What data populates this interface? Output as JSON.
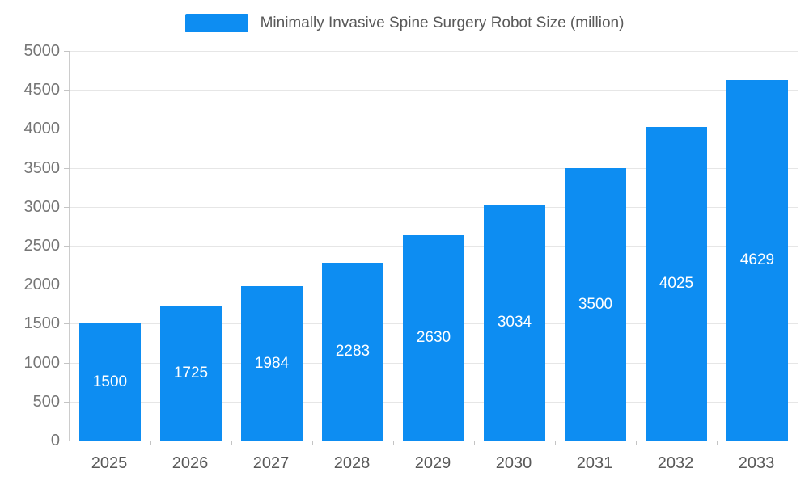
{
  "chart_data": {
    "type": "bar",
    "title": "Minimally Invasive Spine Surgery Robot Size (million)",
    "categories": [
      "2025",
      "2026",
      "2027",
      "2028",
      "2029",
      "2030",
      "2031",
      "2032",
      "2033"
    ],
    "values": [
      1500,
      1725,
      1984,
      2283,
      2630,
      3034,
      3500,
      4025,
      4629
    ],
    "xlabel": "",
    "ylabel": "",
    "ylim": [
      0,
      5000
    ],
    "ytick_step": 500,
    "grid": true,
    "legend_position": "top",
    "bar_color": "#0d8df2",
    "value_label_color": "#ffffff",
    "axis_line_color": "#cccccc",
    "gridline_color": "#e6e6e6",
    "y_label_color": "#757575",
    "x_label_color": "#595959",
    "title_color": "#595959"
  }
}
